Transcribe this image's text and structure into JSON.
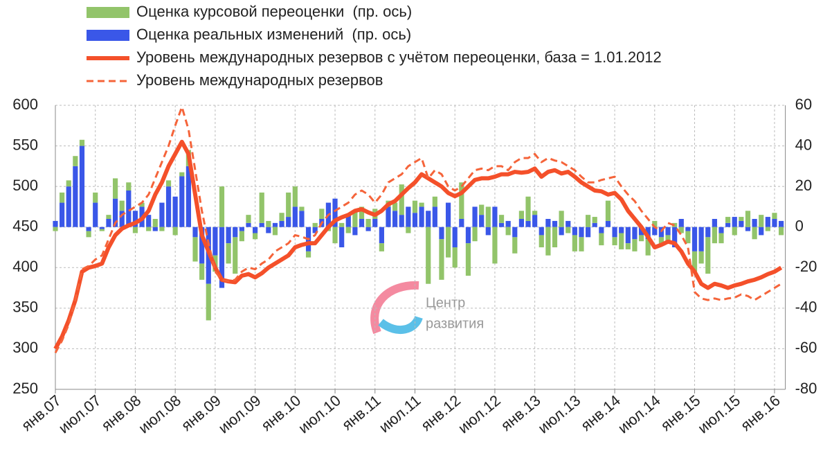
{
  "chart_data": {
    "type": "combo",
    "categories": [
      "янв.07",
      null,
      null,
      null,
      null,
      null,
      "июл.07",
      null,
      null,
      null,
      null,
      null,
      "янв.08",
      null,
      null,
      null,
      null,
      null,
      "июл.08",
      null,
      null,
      null,
      null,
      null,
      "янв.09",
      null,
      null,
      null,
      null,
      null,
      "июл.09",
      null,
      null,
      null,
      null,
      null,
      "янв.10",
      null,
      null,
      null,
      null,
      null,
      "июл.10",
      null,
      null,
      null,
      null,
      null,
      "янв.11",
      null,
      null,
      null,
      null,
      null,
      "июл.11",
      null,
      null,
      null,
      null,
      null,
      "янв.12",
      null,
      null,
      null,
      null,
      null,
      "июл.12",
      null,
      null,
      null,
      null,
      null,
      "янв.13",
      null,
      null,
      null,
      null,
      null,
      "июл.13",
      null,
      null,
      null,
      null,
      null,
      "янв.14",
      null,
      null,
      null,
      null,
      null,
      "июл.14",
      null,
      null,
      null,
      null,
      null,
      "янв.15",
      null,
      null,
      null,
      null,
      null,
      "июл.15",
      null,
      null,
      null,
      null,
      null,
      "янв.16",
      null
    ],
    "series": [
      {
        "name": "Оценка курсовой переоценки  (пр. ось)",
        "type": "bar",
        "axis": "y2",
        "color": "#92c46a",
        "values": [
          -2,
          5,
          3,
          5,
          3,
          -3,
          5,
          -1,
          2,
          10,
          5,
          4,
          -3,
          2,
          -2,
          4,
          -2,
          3,
          -4,
          2,
          8,
          -12,
          -8,
          -18,
          -8,
          20,
          -10,
          -18,
          -5,
          4,
          -3,
          15,
          3,
          -4,
          4,
          12,
          10,
          2,
          -3,
          2,
          5,
          -2,
          -8,
          2,
          -3,
          8,
          6,
          4,
          5,
          -4,
          3,
          4,
          15,
          -3,
          6,
          2,
          -28,
          5,
          -20,
          -15,
          -10,
          18,
          -16,
          -7,
          5,
          10,
          -18,
          4,
          -4,
          -8,
          4,
          12,
          2,
          -6,
          -14,
          -10,
          8,
          -3,
          -8,
          -7,
          6,
          3,
          -6,
          10,
          -4,
          -8,
          -3,
          -6,
          -3,
          -8,
          3,
          -4,
          -4,
          2,
          -3,
          -6,
          -10,
          -6,
          -18,
          -8,
          -5,
          3,
          -4,
          2,
          8,
          -6,
          6,
          -2,
          3,
          -4
        ]
      },
      {
        "name": "Оценка реальных изменений  (пр. ось)",
        "type": "bar",
        "axis": "y2",
        "color": "#3a57e8",
        "values": [
          3,
          12,
          20,
          30,
          40,
          -2,
          12,
          -1,
          4,
          14,
          8,
          18,
          8,
          10,
          6,
          -2,
          12,
          20,
          15,
          25,
          30,
          -5,
          -18,
          -28,
          -14,
          -30,
          -8,
          -5,
          -2,
          2,
          -3,
          2,
          -3,
          2,
          3,
          5,
          10,
          8,
          -12,
          -3,
          4,
          12,
          14,
          -10,
          6,
          -4,
          4,
          -2,
          4,
          -8,
          10,
          8,
          6,
          10,
          7,
          10,
          8,
          10,
          -6,
          12,
          -10,
          4,
          -8,
          10,
          6,
          -4,
          10,
          2,
          3,
          -5,
          4,
          3,
          6,
          -4,
          4,
          3,
          -4,
          3,
          -4,
          -5,
          -5,
          2,
          -3,
          3,
          -5,
          -3,
          -8,
          -6,
          -4,
          -6,
          -4,
          -5,
          -4,
          -10,
          4,
          -2,
          -12,
          -12,
          -5,
          4,
          -3,
          2,
          5,
          3,
          -2,
          4,
          -4,
          5,
          4,
          3
        ]
      },
      {
        "name": "Уровень международных резервов с учётом переоценки, база = 1.01.2012",
        "type": "line",
        "line_style": "solid",
        "color": "#f4502a",
        "values": [
          300,
          315,
          335,
          360,
          395,
          400,
          402,
          405,
          425,
          440,
          448,
          452,
          455,
          460,
          470,
          490,
          505,
          525,
          540,
          555,
          540,
          490,
          440,
          420,
          400,
          385,
          383,
          382,
          390,
          392,
          388,
          393,
          400,
          405,
          410,
          415,
          425,
          428,
          430,
          430,
          440,
          450,
          458,
          462,
          465,
          470,
          472,
          468,
          465,
          470,
          478,
          482,
          490,
          498,
          505,
          515,
          510,
          505,
          500,
          492,
          488,
          492,
          500,
          508,
          510,
          510,
          512,
          515,
          515,
          518,
          517,
          518,
          522,
          512,
          518,
          520,
          516,
          518,
          512,
          505,
          500,
          495,
          494,
          490,
          492,
          484,
          470,
          460,
          450,
          438,
          425,
          428,
          432,
          430,
          420,
          405,
          395,
          380,
          375,
          380,
          378,
          375,
          378,
          380,
          383,
          385,
          388,
          392,
          395,
          400
        ]
      },
      {
        "name": "Уровень международных резервов",
        "type": "line",
        "line_style": "dashed",
        "color": "#f5643a",
        "values": [
          295,
          310,
          330,
          360,
          398,
          402,
          410,
          415,
          435,
          455,
          465,
          470,
          475,
          480,
          490,
          510,
          530,
          550,
          575,
          598,
          570,
          520,
          470,
          430,
          395,
          385,
          383,
          385,
          395,
          400,
          398,
          405,
          410,
          420,
          425,
          430,
          440,
          438,
          435,
          440,
          455,
          465,
          470,
          475,
          480,
          490,
          495,
          490,
          480,
          490,
          505,
          510,
          515,
          525,
          530,
          535,
          510,
          520,
          515,
          500,
          495,
          500,
          510,
          520,
          522,
          520,
          525,
          525,
          520,
          530,
          535,
          535,
          540,
          530,
          535,
          532,
          530,
          525,
          520,
          512,
          505,
          505,
          508,
          510,
          512,
          500,
          490,
          482,
          470,
          460,
          450,
          445,
          455,
          452,
          440,
          425,
          370,
          362,
          360,
          362,
          360,
          362,
          363,
          367,
          365,
          360,
          365,
          370,
          375,
          380
        ]
      }
    ],
    "ylim": [
      250,
      600
    ],
    "yticks": [
      250,
      300,
      350,
      400,
      450,
      500,
      550,
      600
    ],
    "y2lim": [
      -80,
      60
    ],
    "y2ticks": [
      -80,
      -60,
      -40,
      -20,
      0,
      20,
      40,
      60
    ],
    "grid": true,
    "legend": "top-left",
    "watermark": [
      "Центр",
      "развития"
    ]
  }
}
